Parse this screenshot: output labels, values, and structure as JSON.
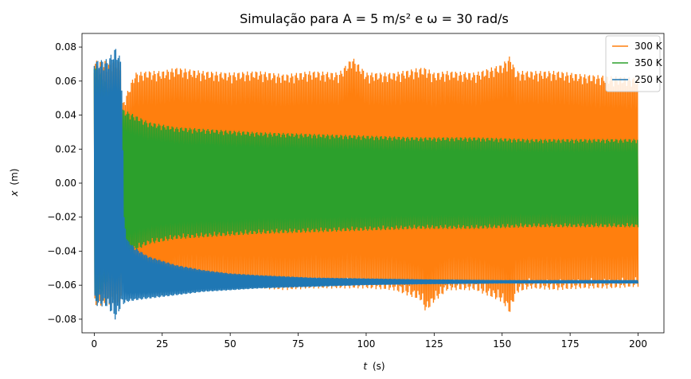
{
  "chart_data": {
    "type": "line",
    "title": "Simulação para A = 5 m/s² e ω = 30 rad/s",
    "xlabel_var": "t",
    "xlabel_unit": "(s)",
    "ylabel_var": "x",
    "ylabel_unit": "(m)",
    "xlim": [
      -4.5,
      209.5
    ],
    "ylim": [
      -0.088,
      0.088
    ],
    "x_ticks": [
      0,
      25,
      50,
      75,
      100,
      125,
      150,
      175,
      200
    ],
    "y_ticks": [
      -0.08,
      -0.06,
      -0.04,
      -0.02,
      0.0,
      0.02,
      0.04,
      0.06,
      0.08
    ],
    "y_tick_labels": [
      "−0.08",
      "−0.06",
      "−0.04",
      "−0.02",
      "0.00",
      "0.02",
      "0.04",
      "0.06",
      "0.08"
    ],
    "legend_position": "upper-right",
    "series": [
      {
        "name": "300 K",
        "color": "#ff7f0e",
        "envelope": {
          "t": [
            0,
            10,
            10,
            15,
            20,
            25,
            30,
            40,
            50,
            60,
            70,
            80,
            90,
            95,
            100,
            110,
            120,
            122,
            125,
            130,
            140,
            150,
            153,
            155,
            160,
            170,
            180,
            190,
            200
          ],
          "upper": [
            0.072,
            0.072,
            0.045,
            0.065,
            0.066,
            0.066,
            0.068,
            0.066,
            0.065,
            0.066,
            0.064,
            0.066,
            0.065,
            0.074,
            0.065,
            0.065,
            0.068,
            0.068,
            0.065,
            0.066,
            0.065,
            0.07,
            0.075,
            0.066,
            0.066,
            0.066,
            0.064,
            0.063,
            0.062
          ],
          "lower": [
            -0.072,
            -0.072,
            -0.045,
            -0.063,
            -0.064,
            -0.066,
            -0.062,
            -0.061,
            -0.062,
            -0.062,
            -0.063,
            -0.062,
            -0.062,
            -0.062,
            -0.062,
            -0.063,
            -0.069,
            -0.076,
            -0.07,
            -0.063,
            -0.063,
            -0.07,
            -0.077,
            -0.065,
            -0.062,
            -0.063,
            -0.062,
            -0.062,
            -0.061
          ]
        }
      },
      {
        "name": "350 K",
        "color": "#2ca02c",
        "envelope": {
          "t": [
            0,
            10,
            15,
            20,
            30,
            40,
            50,
            60,
            80,
            100,
            120,
            140,
            160,
            180,
            200
          ],
          "upper": [
            0.072,
            0.044,
            0.04,
            0.036,
            0.033,
            0.032,
            0.031,
            0.03,
            0.029,
            0.028,
            0.027,
            0.027,
            0.026,
            0.026,
            0.026
          ],
          "lower": [
            -0.072,
            -0.045,
            -0.04,
            -0.036,
            -0.033,
            -0.032,
            -0.031,
            -0.03,
            -0.029,
            -0.028,
            -0.027,
            -0.027,
            -0.026,
            -0.026,
            -0.026
          ]
        }
      },
      {
        "name": "250 K",
        "color": "#1f77b4",
        "envelope": {
          "t": [
            0,
            5,
            8,
            10,
            11,
            12,
            15,
            20,
            30,
            40,
            50,
            60,
            80,
            100,
            120,
            150,
            180,
            200
          ],
          "upper": [
            0.072,
            0.073,
            0.08,
            0.072,
            -0.02,
            -0.033,
            -0.038,
            -0.043,
            -0.048,
            -0.051,
            -0.053,
            -0.054,
            -0.0555,
            -0.056,
            -0.0565,
            -0.057,
            -0.057,
            -0.057
          ],
          "lower": [
            -0.072,
            -0.073,
            -0.081,
            -0.072,
            -0.071,
            -0.07,
            -0.069,
            -0.068,
            -0.066,
            -0.064,
            -0.063,
            -0.062,
            -0.061,
            -0.06,
            -0.0595,
            -0.059,
            -0.059,
            -0.059
          ]
        }
      }
    ]
  }
}
